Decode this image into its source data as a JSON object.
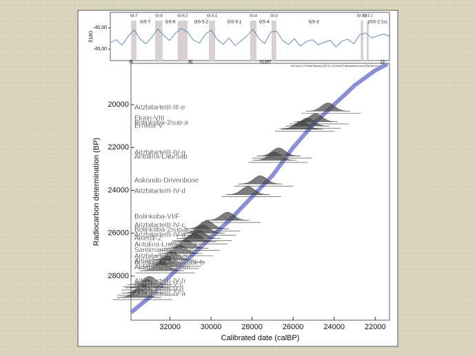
{
  "chart_data": [
    {
      "type": "line",
      "ylabel": "δ18O",
      "ylim": [
        -47.7,
        -36.4
      ],
      "yticks": [
        {
          "value": -40,
          "label": "-40,00"
        },
        {
          "value": -45,
          "label": "-45,00"
        }
      ],
      "xlim": [
        29.3,
        38.7
      ],
      "xticks": [
        30,
        32
      ],
      "extra_labels": [
        "01397",
        "22"
      ],
      "series": [
        {
          "color": "#5b7fb5",
          "x": [
            29.3,
            29.5,
            29.7,
            29.9,
            30.1,
            30.3,
            30.5,
            30.7,
            30.9,
            31.1,
            31.3,
            31.5,
            31.7,
            31.9,
            32.1,
            32.3,
            32.5,
            32.7,
            32.9,
            33.1,
            33.3,
            33.5,
            33.7,
            33.9,
            34.1,
            34.3,
            34.5,
            34.7,
            34.9,
            35.1,
            35.3,
            35.5,
            35.7,
            35.9,
            36.1,
            36.3,
            36.5,
            36.7,
            36.9,
            37.1,
            37.3,
            37.5,
            37.7,
            37.9,
            38.1,
            38.3,
            38.5,
            38.7
          ],
          "values": [
            -43.5,
            -42.8,
            -44.1,
            -42.0,
            -40.5,
            -42.6,
            -43.8,
            -42.2,
            -40.3,
            -41.8,
            -43.0,
            -41.2,
            -40.2,
            -41.0,
            -42.9,
            -43.6,
            -41.5,
            -40.6,
            -42.7,
            -43.9,
            -42.4,
            -44.2,
            -43.1,
            -41.9,
            -40.4,
            -42.5,
            -43.7,
            -41.0,
            -40.8,
            -43.0,
            -43.9,
            -42.6,
            -44.3,
            -43.2,
            -42.8,
            -44.0,
            -43.4,
            -42.9,
            -44.5,
            -43.1,
            -42.7,
            -43.8,
            -41.6,
            -41.2,
            -42.4,
            -41.9,
            -41.5,
            -42.0
          ]
        }
      ],
      "interstadials": [
        {
          "label": "GI-7",
          "from": 30.0,
          "to": 30.18
        },
        {
          "label": "GI-6",
          "from": 30.81,
          "to": 31.06
        },
        {
          "label": "GI-5.2",
          "from": 31.57,
          "to": 31.9
        },
        {
          "label": "GI-5.1",
          "from": 32.62,
          "to": 32.83
        },
        {
          "label": "GI-4",
          "from": 34.01,
          "to": 34.22
        },
        {
          "label": "GI-3",
          "from": 34.73,
          "to": 34.89
        },
        {
          "label": "GI 2.2",
          "from": 37.73,
          "to": 37.82
        },
        {
          "label": "GI 2.1",
          "from": 37.93,
          "to": 38.0
        }
      ],
      "stadials": [
        {
          "label": "GS-7",
          "x": 30.48
        },
        {
          "label": "GS-6",
          "x": 31.32
        },
        {
          "label": "GS-5.2",
          "x": 32.36
        },
        {
          "label": "GS-5.1",
          "x": 33.48
        },
        {
          "label": "GS-4",
          "x": 34.48
        },
        {
          "label": "GS-3",
          "x": 36.15
        },
        {
          "label": "(GS-2.1c)",
          "x": 38.3
        }
      ]
    },
    {
      "type": "calibration",
      "annotation": "OxCal v4.3.2 Bronk Ramsey (2017); r:5 IntCal13 atmospheric curve (Reimer et al 2013)",
      "xlabel": "Calibrated date (calBP)",
      "ylabel": "Radiocarbon determination (BP)",
      "xlim": [
        33900,
        21300
      ],
      "xticks": [
        32000,
        30000,
        28000,
        26000,
        24000,
        22000
      ],
      "ylim": [
        18070,
        30060
      ],
      "yticks": [
        20000,
        22000,
        24000,
        26000,
        28000
      ],
      "calibration_curve": {
        "color": "#8a8fd6",
        "x": [
          33900,
          33000,
          32000,
          31000,
          30000,
          29000,
          28000,
          27000,
          26000,
          25000,
          24000,
          23000,
          22000,
          21400
        ],
        "values": [
          29700,
          29000,
          28000,
          27100,
          26200,
          25300,
          24300,
          23300,
          22000,
          20900,
          20000,
          19100,
          18400,
          18100
        ]
      },
      "samples": [
        {
          "label": "AitzbitarteIII-III-e",
          "bp": 20300,
          "cal": 24300
        },
        {
          "label": "Ekain-VIII",
          "bp": 20800,
          "cal": 24900
        },
        {
          "label": "Bolinkoba-2sup-a",
          "bp": 21000,
          "cal": 25300
        },
        {
          "label": "Ermitia-V",
          "bp": 21150,
          "cal": 25600
        },
        {
          "label": "AitzbitarteIII-IV-g",
          "bp": 22400,
          "cal": 26700
        },
        {
          "label": "Antolina-Lab/Sab",
          "bp": 22600,
          "cal": 26900
        },
        {
          "label": "Askondo-Drivenbone",
          "bp": 23700,
          "cal": 27600
        },
        {
          "label": "AitzbitarteIII-IV-d",
          "bp": 24200,
          "cal": 28200
        },
        {
          "label": "Bolinkoba-VI/F",
          "bp": 25400,
          "cal": 29200
        },
        {
          "label": "AitzbitarteIII-IV-c",
          "bp": 25800,
          "cal": 30200
        },
        {
          "label": "Bolinkoba-2sup-b",
          "bp": 26000,
          "cal": 30400
        },
        {
          "label": "AitzbitarteIII-IV-a",
          "bp": 26250,
          "cal": 30600
        },
        {
          "label": "Alkerdi-2",
          "bp": 26400,
          "cal": 30800
        },
        {
          "label": "Antolina-Lmbk/Smbk-a",
          "bp": 26700,
          "cal": 31200
        },
        {
          "label": "Santimamine-Arp-c",
          "bp": 26950,
          "cal": 31500
        },
        {
          "label": "AitzbitarteIII-Va-a",
          "bp": 27250,
          "cal": 31900
        },
        {
          "label": "Amalda-VII-b",
          "bp": 27450,
          "cal": 32100
        },
        {
          "label": "Antolina-Lmbk/Smbk-b",
          "bp": 27550,
          "cal": 32200
        },
        {
          "label": "Aldatxarren-Beam",
          "bp": 27750,
          "cal": 32400
        },
        {
          "label": "AitzbitarteIII-IV-h",
          "bp": 28400,
          "cal": 33000
        },
        {
          "label": "AitzbitarteIII-V-c",
          "bp": 28550,
          "cal": 33100
        },
        {
          "label": "AitzbitarteIII-V-d",
          "bp": 28800,
          "cal": 33300
        },
        {
          "label": "AitzbitarteIII-IV-a",
          "bp": 29000,
          "cal": 33500
        }
      ]
    }
  ]
}
